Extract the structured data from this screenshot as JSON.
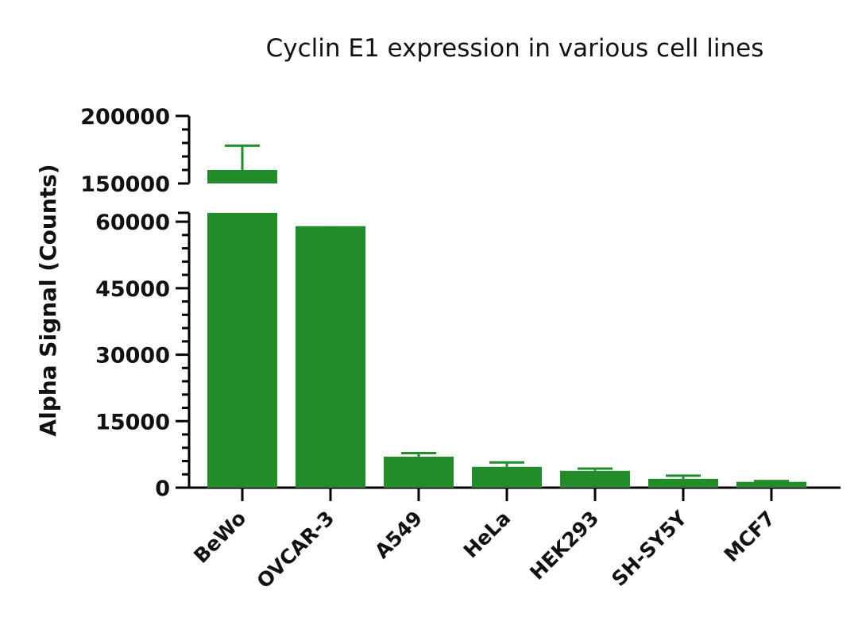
{
  "chart_data": {
    "type": "bar",
    "title": "Cyclin E1 expression in various cell lines",
    "ylabel": "Alpha Signal (Counts)",
    "xlabel": "",
    "categories": [
      "BeWo",
      "OVCAR-3",
      "A549",
      "HeLa",
      "HEK293",
      "SH-SY5Y",
      "MCF7"
    ],
    "values": [
      160000,
      59000,
      7000,
      4700,
      3800,
      2000,
      1300
    ],
    "errors": [
      18000,
      3800,
      800,
      1000,
      500,
      700,
      200
    ],
    "color": "#228B2A",
    "y_axis_break": true,
    "ylim_lower": [
      0,
      62000
    ],
    "ylim_upper": [
      150000,
      200000
    ],
    "yticks_lower": [
      "0",
      "15000",
      "30000",
      "45000",
      "60000"
    ],
    "yticks_upper": [
      "150000",
      "200000"
    ],
    "grid": false,
    "legend": "none"
  }
}
